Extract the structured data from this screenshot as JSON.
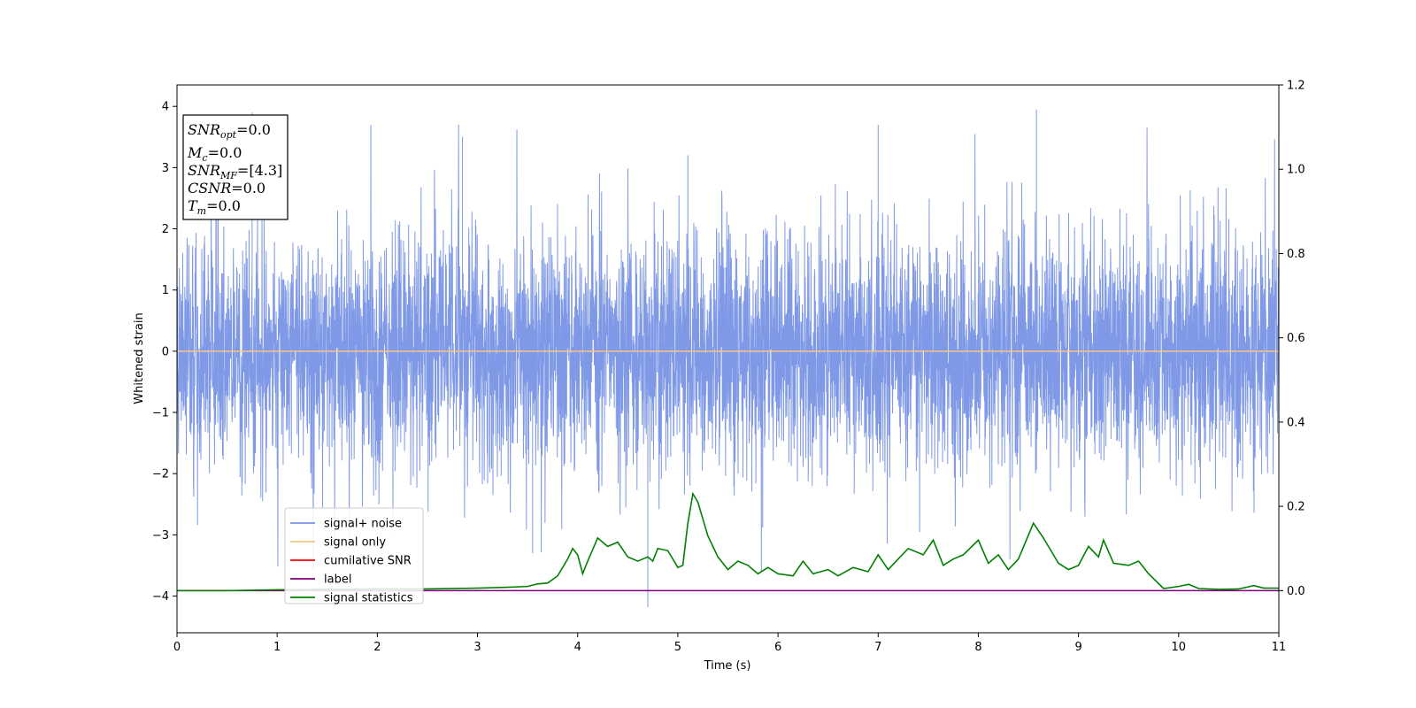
{
  "chart_data": {
    "type": "line",
    "xlabel": "Time (s)",
    "ylabel": "Whitened strain",
    "xlim": [
      0,
      11
    ],
    "ylim": [
      -4.6,
      4.35
    ],
    "y2lim": [
      -0.1,
      1.2
    ],
    "x_ticks": [
      "0",
      "1",
      "2",
      "3",
      "4",
      "5",
      "6",
      "7",
      "8",
      "9",
      "10",
      "11"
    ],
    "y_ticks": [
      "4",
      "3",
      "2",
      "1",
      "0",
      "−1",
      "−2",
      "−3",
      "−4"
    ],
    "y2_ticks": [
      "1.2",
      "1.0",
      "0.8",
      "0.6",
      "0.4",
      "0.2",
      "0.0"
    ],
    "grid": false,
    "legend_position": "lower-left",
    "info_box": {
      "snr_opt": {
        "main": "SNR",
        "sub": "opt",
        "value": "=0.0"
      },
      "mc": {
        "main": "M",
        "sub": "c",
        "value": "=0.0"
      },
      "snr_mf": {
        "main": "SNR",
        "sub": "MF",
        "value": "=[4.3]"
      },
      "csnr": {
        "main": "CSNR",
        "value": "=0.0"
      },
      "tm": {
        "main": "T",
        "sub": "m",
        "value": "=0.0"
      }
    },
    "series": [
      {
        "name": "signal+ noise",
        "color": "#7893e6",
        "axis": "left",
        "description_values": {
          "typical_envelope": [
            -2.2,
            2.6
          ],
          "min": -4.18,
          "max": 3.95
        }
      },
      {
        "name": "signal only",
        "color": "#f5c78a",
        "axis": "left",
        "values": [
          [
            0,
            0
          ],
          [
            11,
            0
          ]
        ]
      },
      {
        "name": "cumilative SNR",
        "color": "#ff0000",
        "axis": "left",
        "values": []
      },
      {
        "name": "label",
        "color": "#800080",
        "axis": "right",
        "values": [
          [
            0,
            0
          ],
          [
            11,
            0
          ]
        ]
      },
      {
        "name": "signal statistics",
        "color": "#008000",
        "axis": "right",
        "values": [
          [
            0,
            0.0
          ],
          [
            0.5,
            0.0
          ],
          [
            1.0,
            0.002
          ],
          [
            1.5,
            0.003
          ],
          [
            2.0,
            0.004
          ],
          [
            2.5,
            0.004
          ],
          [
            3.0,
            0.006
          ],
          [
            3.3,
            0.008
          ],
          [
            3.5,
            0.01
          ],
          [
            3.6,
            0.016
          ],
          [
            3.7,
            0.018
          ],
          [
            3.8,
            0.035
          ],
          [
            3.9,
            0.075
          ],
          [
            3.95,
            0.1
          ],
          [
            4.0,
            0.085
          ],
          [
            4.05,
            0.04
          ],
          [
            4.1,
            0.07
          ],
          [
            4.2,
            0.125
          ],
          [
            4.3,
            0.105
          ],
          [
            4.4,
            0.115
          ],
          [
            4.5,
            0.08
          ],
          [
            4.6,
            0.07
          ],
          [
            4.7,
            0.08
          ],
          [
            4.75,
            0.07
          ],
          [
            4.8,
            0.1
          ],
          [
            4.9,
            0.095
          ],
          [
            5.0,
            0.055
          ],
          [
            5.05,
            0.06
          ],
          [
            5.1,
            0.16
          ],
          [
            5.15,
            0.23
          ],
          [
            5.2,
            0.21
          ],
          [
            5.3,
            0.13
          ],
          [
            5.4,
            0.08
          ],
          [
            5.5,
            0.05
          ],
          [
            5.6,
            0.07
          ],
          [
            5.7,
            0.06
          ],
          [
            5.8,
            0.04
          ],
          [
            5.9,
            0.055
          ],
          [
            6.0,
            0.04
          ],
          [
            6.15,
            0.035
          ],
          [
            6.25,
            0.07
          ],
          [
            6.35,
            0.04
          ],
          [
            6.5,
            0.05
          ],
          [
            6.6,
            0.035
          ],
          [
            6.75,
            0.055
          ],
          [
            6.9,
            0.045
          ],
          [
            7.0,
            0.085
          ],
          [
            7.1,
            0.05
          ],
          [
            7.2,
            0.075
          ],
          [
            7.3,
            0.1
          ],
          [
            7.45,
            0.085
          ],
          [
            7.55,
            0.12
          ],
          [
            7.65,
            0.06
          ],
          [
            7.75,
            0.075
          ],
          [
            7.85,
            0.085
          ],
          [
            8.0,
            0.12
          ],
          [
            8.1,
            0.065
          ],
          [
            8.2,
            0.085
          ],
          [
            8.3,
            0.05
          ],
          [
            8.4,
            0.075
          ],
          [
            8.55,
            0.16
          ],
          [
            8.65,
            0.125
          ],
          [
            8.8,
            0.065
          ],
          [
            8.9,
            0.05
          ],
          [
            9.0,
            0.06
          ],
          [
            9.1,
            0.105
          ],
          [
            9.2,
            0.08
          ],
          [
            9.25,
            0.12
          ],
          [
            9.35,
            0.065
          ],
          [
            9.5,
            0.06
          ],
          [
            9.6,
            0.07
          ],
          [
            9.7,
            0.04
          ],
          [
            9.85,
            0.005
          ],
          [
            10.0,
            0.01
          ],
          [
            10.1,
            0.015
          ],
          [
            10.2,
            0.005
          ],
          [
            10.4,
            0.003
          ],
          [
            10.6,
            0.004
          ],
          [
            10.75,
            0.012
          ],
          [
            10.85,
            0.006
          ],
          [
            11.0,
            0.006
          ]
        ]
      }
    ]
  }
}
